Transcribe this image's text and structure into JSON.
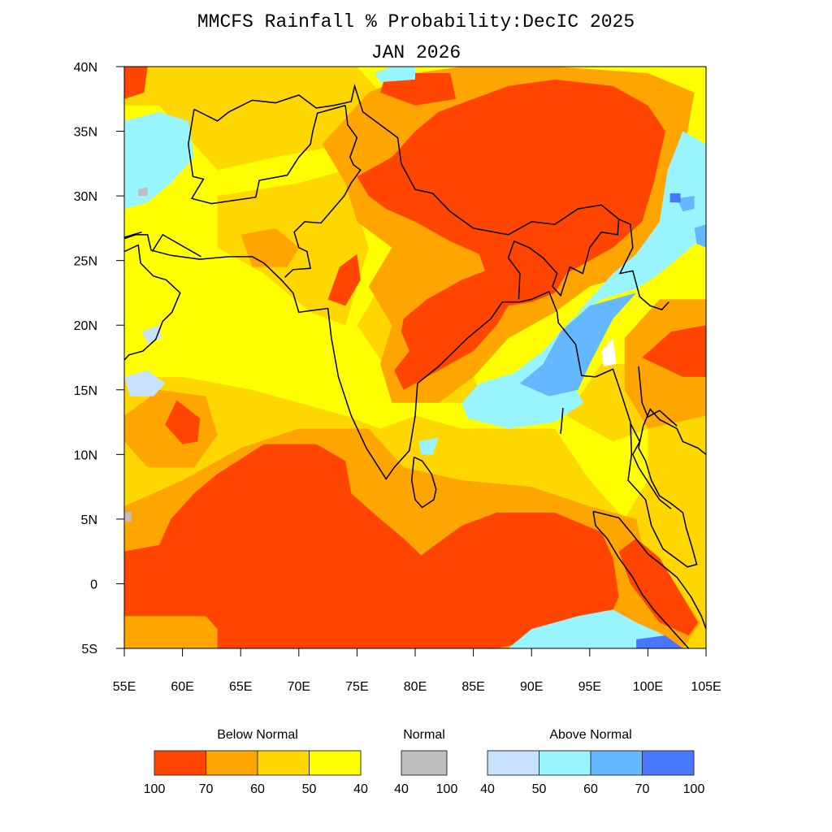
{
  "title": "MMCFS Rainfall % Probability:DecIC 2025",
  "subtitle": "JAN 2026",
  "map": {
    "lon_range": [
      55,
      105
    ],
    "lat_range": [
      -5,
      40
    ],
    "x_ticks": [
      {
        "value": 55,
        "label": "55E"
      },
      {
        "value": 60,
        "label": "60E"
      },
      {
        "value": 65,
        "label": "65E"
      },
      {
        "value": 70,
        "label": "70E"
      },
      {
        "value": 75,
        "label": "75E"
      },
      {
        "value": 80,
        "label": "80E"
      },
      {
        "value": 85,
        "label": "85E"
      },
      {
        "value": 90,
        "label": "90E"
      },
      {
        "value": 95,
        "label": "95E"
      },
      {
        "value": 100,
        "label": "100E"
      },
      {
        "value": 105,
        "label": "105E"
      }
    ],
    "y_ticks": [
      {
        "value": 40,
        "label": "40N"
      },
      {
        "value": 35,
        "label": "35N"
      },
      {
        "value": 30,
        "label": "30N"
      },
      {
        "value": 25,
        "label": "25N"
      },
      {
        "value": 20,
        "label": "20N"
      },
      {
        "value": 15,
        "label": "15N"
      },
      {
        "value": 10,
        "label": "10N"
      },
      {
        "value": 5,
        "label": "5N"
      },
      {
        "value": 0,
        "label": "0"
      },
      {
        "value": -5,
        "label": "5S"
      }
    ]
  },
  "legend": {
    "groups": [
      {
        "heading": "Below Normal",
        "colors": [
          "#ff4500",
          "#ffa500",
          "#ffd700",
          "#ffff00"
        ],
        "labels": [
          "100",
          "70",
          "60",
          "50",
          "40"
        ]
      },
      {
        "heading": "Normal",
        "colors": [
          "#bebebe"
        ],
        "labels": [
          "40",
          "100"
        ]
      },
      {
        "heading": "Above Normal",
        "colors": [
          "#c6e2ff",
          "#98f5ff",
          "#63b8ff",
          "#4876ff"
        ],
        "labels": [
          "40",
          "50",
          "60",
          "70",
          "100"
        ]
      }
    ]
  }
}
